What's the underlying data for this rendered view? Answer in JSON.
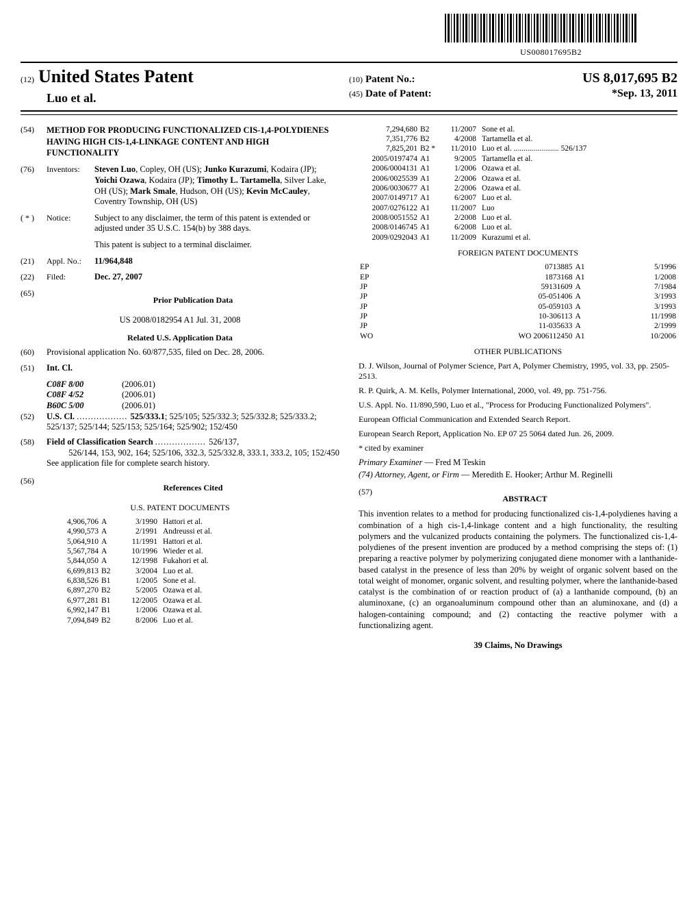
{
  "doc_code": "US008017695B2",
  "header": {
    "code12": "(12)",
    "usp": "United States Patent",
    "authors": "Luo et al.",
    "code10": "(10)",
    "patno_label": "Patent No.:",
    "patno_value": "US 8,017,695 B2",
    "code45": "(45)",
    "dop_label": "Date of Patent:",
    "dop_value": "*Sep. 13, 2011"
  },
  "left": {
    "f54": {
      "code": "(54)",
      "title": "METHOD FOR PRODUCING FUNCTIONALIZED CIS-1,4-POLYDIENES HAVING HIGH CIS-1,4-LINKAGE CONTENT AND HIGH FUNCTIONALITY"
    },
    "f76": {
      "code": "(76)",
      "label": "Inventors:",
      "text_parts": [
        {
          "b": true,
          "t": "Steven Luo"
        },
        {
          "t": ", Copley, OH (US); "
        },
        {
          "b": true,
          "t": "Junko Kurazumi"
        },
        {
          "t": ", Kodaira (JP); "
        },
        {
          "b": true,
          "t": "Yoichi Ozawa"
        },
        {
          "t": ", Kodaira (JP); "
        },
        {
          "b": true,
          "t": "Timothy L. Tartamella"
        },
        {
          "t": ", Silver Lake, OH (US); "
        },
        {
          "b": true,
          "t": "Mark Smale"
        },
        {
          "t": ", Hudson, OH (US); "
        },
        {
          "b": true,
          "t": "Kevin McCauley"
        },
        {
          "t": ", Coventry Township, OH (US)"
        }
      ]
    },
    "notice": {
      "code": "( * )",
      "label": "Notice:",
      "p1": "Subject to any disclaimer, the term of this patent is extended or adjusted under 35 U.S.C. 154(b) by 388 days.",
      "p2": "This patent is subject to a terminal disclaimer."
    },
    "f21": {
      "code": "(21)",
      "label": "Appl. No.:",
      "value": "11/964,848"
    },
    "f22": {
      "code": "(22)",
      "label": "Filed:",
      "value": "Dec. 27, 2007"
    },
    "f65": {
      "code": "(65)",
      "head": "Prior Publication Data",
      "line": "US 2008/0182954 A1     Jul. 31, 2008"
    },
    "related_head": "Related U.S. Application Data",
    "f60": {
      "code": "(60)",
      "text": "Provisional application No. 60/877,535, filed on Dec. 28, 2006."
    },
    "f51": {
      "code": "(51)",
      "label": "Int. Cl.",
      "rows": [
        {
          "cls": "C08F 8/00",
          "ver": "(2006.01)"
        },
        {
          "cls": "C08F 4/52",
          "ver": "(2006.01)"
        },
        {
          "cls": "B60C 5/00",
          "ver": "(2006.01)"
        }
      ]
    },
    "f52": {
      "code": "(52)",
      "label": "U.S. Cl.",
      "lead": "525/333.1",
      "rest": "; 525/105; 525/332.3; 525/332.8; 525/333.2; 525/137; 525/144; 525/153; 525/164; 525/902; 152/450"
    },
    "f58": {
      "code": "(58)",
      "label": "Field of Classification Search",
      "lead": "526/137,",
      "rest": "526/144, 153, 902, 164; 525/106, 332.3, 525/332.8, 333.1, 333.2, 105; 152/450",
      "note": "See application file for complete search history."
    },
    "f56": {
      "code": "(56)",
      "head": "References Cited",
      "sub": "U.S. PATENT DOCUMENTS"
    },
    "us_patents": [
      {
        "n": "4,906,706",
        "k": "A",
        "d": "3/1990",
        "w": "Hattori et al."
      },
      {
        "n": "4,990,573",
        "k": "A",
        "d": "2/1991",
        "w": "Andreussi et al."
      },
      {
        "n": "5,064,910",
        "k": "A",
        "d": "11/1991",
        "w": "Hattori et al."
      },
      {
        "n": "5,567,784",
        "k": "A",
        "d": "10/1996",
        "w": "Wieder et al."
      },
      {
        "n": "5,844,050",
        "k": "A",
        "d": "12/1998",
        "w": "Fukahori et al."
      },
      {
        "n": "6,699,813",
        "k": "B2",
        "d": "3/2004",
        "w": "Luo et al."
      },
      {
        "n": "6,838,526",
        "k": "B1",
        "d": "1/2005",
        "w": "Sone et al."
      },
      {
        "n": "6,897,270",
        "k": "B2",
        "d": "5/2005",
        "w": "Ozawa et al."
      },
      {
        "n": "6,977,281",
        "k": "B1",
        "d": "12/2005",
        "w": "Ozawa et al."
      },
      {
        "n": "6,992,147",
        "k": "B1",
        "d": "1/2006",
        "w": "Ozawa et al."
      },
      {
        "n": "7,094,849",
        "k": "B2",
        "d": "8/2006",
        "w": "Luo et al."
      }
    ]
  },
  "right": {
    "us_patents_cont": [
      {
        "n": "7,294,680",
        "k": "B2",
        "d": "11/2007",
        "w": "Sone et al."
      },
      {
        "n": "7,351,776",
        "k": "B2",
        "d": "4/2008",
        "w": "Tartamella et al."
      },
      {
        "n": "7,825,201",
        "k": "B2 *",
        "d": "11/2010",
        "w": "Luo et al. ....................... 526/137"
      },
      {
        "n": "2005/0197474",
        "k": "A1",
        "d": "9/2005",
        "w": "Tartamella et al."
      },
      {
        "n": "2006/0004131",
        "k": "A1",
        "d": "1/2006",
        "w": "Ozawa et al."
      },
      {
        "n": "2006/0025539",
        "k": "A1",
        "d": "2/2006",
        "w": "Ozawa et al."
      },
      {
        "n": "2006/0030677",
        "k": "A1",
        "d": "2/2006",
        "w": "Ozawa et al."
      },
      {
        "n": "2007/0149717",
        "k": "A1",
        "d": "6/2007",
        "w": "Luo et al."
      },
      {
        "n": "2007/0276122",
        "k": "A1",
        "d": "11/2007",
        "w": "Luo"
      },
      {
        "n": "2008/0051552",
        "k": "A1",
        "d": "2/2008",
        "w": "Luo et al."
      },
      {
        "n": "2008/0146745",
        "k": "A1",
        "d": "6/2008",
        "w": "Luo et al."
      },
      {
        "n": "2009/0292043",
        "k": "A1",
        "d": "11/2009",
        "w": "Kurazumi et al."
      }
    ],
    "foreign_head": "FOREIGN PATENT DOCUMENTS",
    "foreign": [
      {
        "c": "EP",
        "n": "0713885",
        "k": "A1",
        "d": "5/1996"
      },
      {
        "c": "EP",
        "n": "1873168",
        "k": "A1",
        "d": "1/2008"
      },
      {
        "c": "JP",
        "n": "59131609",
        "k": "A",
        "d": "7/1984"
      },
      {
        "c": "JP",
        "n": "05-051406",
        "k": "A",
        "d": "3/1993"
      },
      {
        "c": "JP",
        "n": "05-059103",
        "k": "A",
        "d": "3/1993"
      },
      {
        "c": "JP",
        "n": "10-306113",
        "k": "A",
        "d": "11/1998"
      },
      {
        "c": "JP",
        "n": "11-035633",
        "k": "A",
        "d": "2/1999"
      },
      {
        "c": "WO",
        "n": "WO 2006112450",
        "k": "A1",
        "d": "10/2006"
      }
    ],
    "other_head": "OTHER PUBLICATIONS",
    "other": [
      "D. J. Wilson, Journal of Polymer Science, Part A, Polymer Chemistry, 1995, vol. 33, pp. 2505-2513.",
      "R. P. Quirk, A. M. Kells, Polymer International, 2000, vol. 49, pp. 751-756.",
      "U.S. Appl. No. 11/890,590, Luo et al., \"Process for Producing Functionalized Polymers\".",
      "European Official Communication and Extended Search Report.",
      "European Search Report, Application No. EP 07 25 5064 dated Jun. 26, 2009."
    ],
    "cited_line": "* cited by examiner",
    "examiner_label": "Primary Examiner",
    "examiner_name": " — Fred M Teskin",
    "attorney_label": "(74) Attorney, Agent, or Firm",
    "attorney_name": " — Meredith E. Hooker; Arthur M. Reginelli",
    "abstract_code": "(57)",
    "abstract_head": "ABSTRACT",
    "abstract": "This invention relates to a method for producing functionalized cis-1,4-polydienes having a combination of a high cis-1,4-linkage content and a high functionality, the resulting polymers and the vulcanized products containing the polymers. The functionalized cis-1,4-polydienes of the present invention are produced by a method comprising the steps of: (1) preparing a reactive polymer by polymerizing conjugated diene monomer with a lanthanide-based catalyst in the presence of less than 20% by weight of organic solvent based on the total weight of monomer, organic solvent, and resulting polymer, where the lanthanide-based catalyst is the combination of or reaction product of (a) a lanthanide compound, (b) an aluminoxane, (c) an organoaluminum compound other than an aluminoxane, and (d) a halogen-containing compound; and (2) contacting the reactive polymer with a functionalizing agent.",
    "claims": "39 Claims, No Drawings"
  }
}
